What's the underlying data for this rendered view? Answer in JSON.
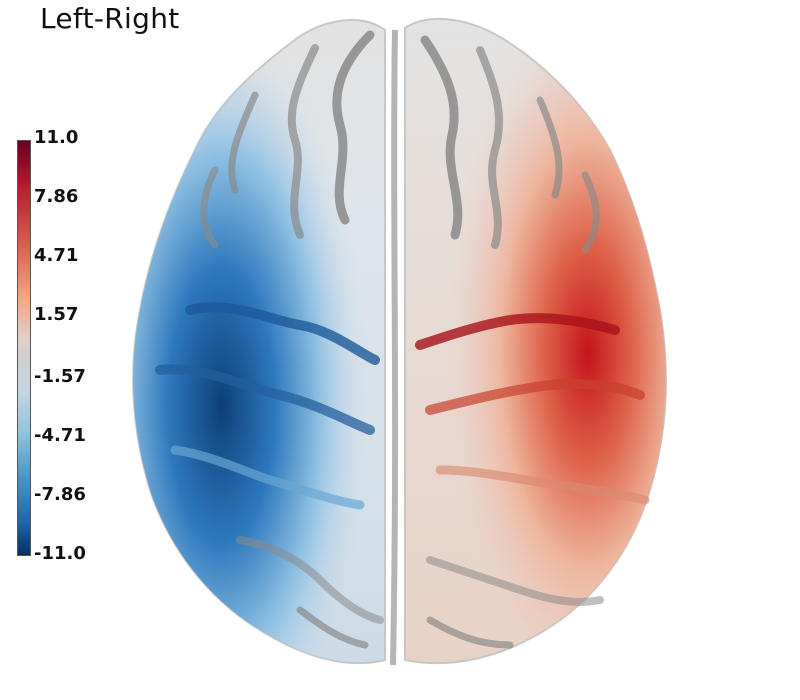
{
  "title": "Left-Right",
  "colorbar": {
    "ticks": [
      "11.0",
      "7.86",
      "4.71",
      "1.57",
      "-1.57",
      "-4.71",
      "-7.86",
      "-11.0"
    ],
    "colors": {
      "max": "#67001f",
      "high": "#d6604d",
      "mid_high": "#e8c4b4",
      "mid": "#d0d0d0",
      "mid_low": "#b4cbdc",
      "low": "#4393c3",
      "min": "#053061"
    }
  },
  "brain": {
    "view": "superior",
    "left_hemisphere_color": "#2f7cc0",
    "right_hemisphere_color": "#d62a2a",
    "cortex_color": "#d9d9d9",
    "sulcus_color": "#8a8a8a"
  }
}
